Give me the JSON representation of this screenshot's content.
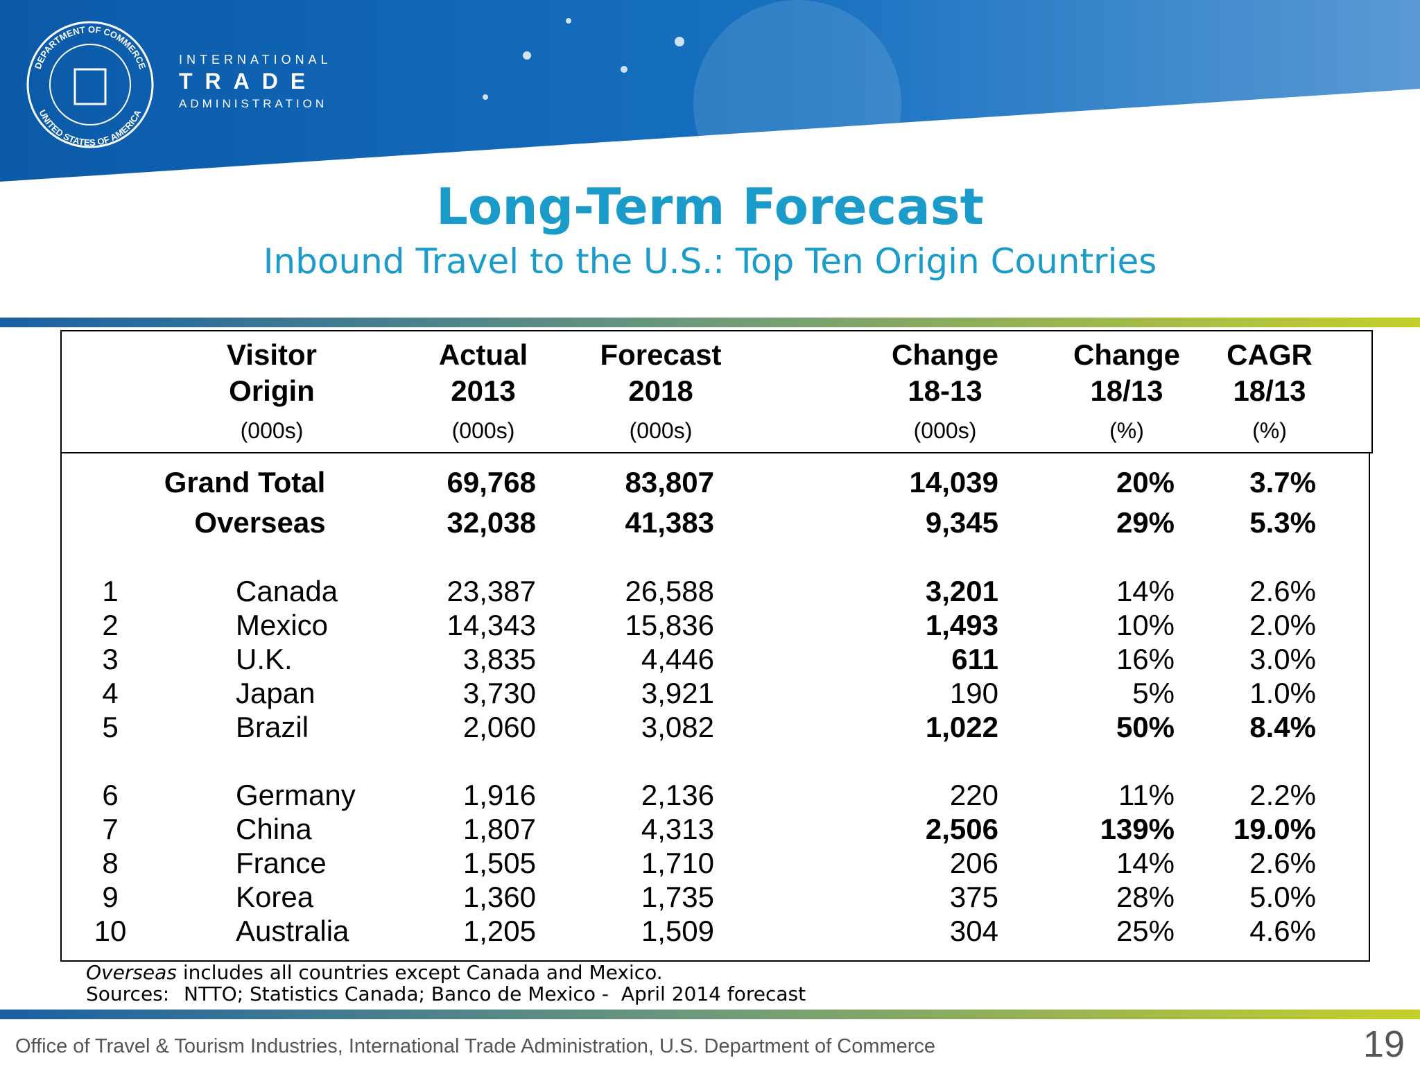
{
  "header": {
    "seal_top": "DEPARTMENT OF COMMERCE",
    "seal_bottom": "UNITED STATES OF AMERICA",
    "org_line1": "INTERNATIONAL",
    "org_line2": "TRADE",
    "org_line3": "ADMINISTRATION"
  },
  "title": "Long-Term Forecast",
  "subtitle": "Inbound Travel to the U.S.: Top Ten Origin Countries",
  "table": {
    "headers": [
      [
        "Visitor",
        "Origin",
        "(000s)"
      ],
      [
        "Actual",
        "2013",
        "(000s)"
      ],
      [
        "Forecast",
        "2018",
        "(000s)"
      ],
      [
        "Change",
        "18-13",
        "(000s)"
      ],
      [
        "Change",
        "18/13",
        "(%)"
      ],
      [
        "CAGR",
        "18/13",
        "(%)"
      ]
    ],
    "highlight_color": "#1a1adb",
    "sections": [
      {
        "rows": [
          {
            "origin": "Grand Total",
            "actual": "69,768",
            "forecast": "83,807",
            "change": "14,039",
            "change_pct": "20%",
            "cagr": "3.7%"
          },
          {
            "origin": "Overseas",
            "actual": "32,038",
            "forecast": "41,383",
            "change": "9,345",
            "change_pct": "29%",
            "cagr": "5.3%"
          }
        ]
      },
      {
        "rows": [
          {
            "rank": "1",
            "origin": "Canada",
            "actual": "23,387",
            "forecast": "26,588",
            "change": "3,201",
            "change_pct": "14%",
            "cagr": "2.6%",
            "highlight": [
              "change"
            ]
          },
          {
            "rank": "2",
            "origin": "Mexico",
            "actual": "14,343",
            "forecast": "15,836",
            "change": "1,493",
            "change_pct": "10%",
            "cagr": "2.0%",
            "highlight": [
              "change"
            ]
          },
          {
            "rank": "3",
            "origin": "U.K.",
            "actual": "3,835",
            "forecast": "4,446",
            "change": "611",
            "change_pct": "16%",
            "cagr": "3.0%",
            "highlight": [
              "change"
            ]
          },
          {
            "rank": "4",
            "origin": "Japan",
            "actual": "3,730",
            "forecast": "3,921",
            "change": "190",
            "change_pct": "5%",
            "cagr": "1.0%"
          },
          {
            "rank": "5",
            "origin": "Brazil",
            "actual": "2,060",
            "forecast": "3,082",
            "change": "1,022",
            "change_pct": "50%",
            "cagr": "8.4%",
            "highlight": [
              "change",
              "change_pct",
              "cagr"
            ]
          }
        ]
      },
      {
        "rows": [
          {
            "rank": "6",
            "origin": "Germany",
            "actual": "1,916",
            "forecast": "2,136",
            "change": "220",
            "change_pct": "11%",
            "cagr": "2.2%"
          },
          {
            "rank": "7",
            "origin": "China",
            "actual": "1,807",
            "forecast": "4,313",
            "change": "2,506",
            "change_pct": "139%",
            "cagr": "19.0%",
            "highlight": [
              "change",
              "change_pct",
              "cagr"
            ]
          },
          {
            "rank": "8",
            "origin": "France",
            "actual": "1,505",
            "forecast": "1,710",
            "change": "206",
            "change_pct": "14%",
            "cagr": "2.6%"
          },
          {
            "rank": "9",
            "origin": "Korea",
            "actual": "1,360",
            "forecast": "1,735",
            "change": "375",
            "change_pct": "28%",
            "cagr": "5.0%"
          },
          {
            "rank": "10",
            "origin": "Australia",
            "actual": "1,205",
            "forecast": "1,509",
            "change": "304",
            "change_pct": "25%",
            "cagr": "4.6%"
          }
        ]
      }
    ]
  },
  "notes": {
    "emphasis": "Overseas",
    "text": " includes all countries except Canada and Mexico.",
    "sources_label": "Sources:",
    "sources": "NTTO; Statistics Canada; Banco de Mexico -  April 2014 forecast"
  },
  "footer": {
    "text": "Office of Travel & Tourism Industries, International Trade Administration, U.S. Department of Commerce",
    "page": "19"
  }
}
